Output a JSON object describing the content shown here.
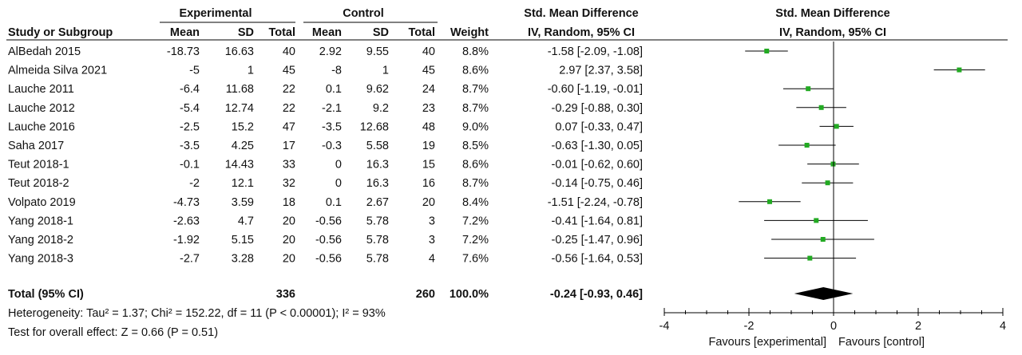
{
  "chart_data": {
    "type": "forest",
    "headers": {
      "experimental": "Experimental",
      "control": "Control",
      "smd_col_title": "Std. Mean Difference",
      "smd_col_method": "IV, Random, 95% CI",
      "plot_title": "Std. Mean Difference",
      "plot_method": "IV, Random, 95% CI",
      "study": "Study or Subgroup",
      "mean": "Mean",
      "sd": "SD",
      "total": "Total",
      "weight": "Weight"
    },
    "studies": [
      {
        "name": "AlBedah 2015",
        "exp_mean": "-18.73",
        "exp_sd": "16.63",
        "exp_total": "40",
        "ctl_mean": "2.92",
        "ctl_sd": "9.55",
        "ctl_total": "40",
        "weight": "8.8%",
        "ci_text": "-1.58 [-2.09, -1.08]",
        "est": -1.58,
        "lo": -2.09,
        "hi": -1.08
      },
      {
        "name": "Almeida Silva 2021",
        "exp_mean": "-5",
        "exp_sd": "1",
        "exp_total": "45",
        "ctl_mean": "-8",
        "ctl_sd": "1",
        "ctl_total": "45",
        "weight": "8.6%",
        "ci_text": "2.97 [2.37, 3.58]",
        "est": 2.97,
        "lo": 2.37,
        "hi": 3.58
      },
      {
        "name": "Lauche 2011",
        "exp_mean": "-6.4",
        "exp_sd": "11.68",
        "exp_total": "22",
        "ctl_mean": "0.1",
        "ctl_sd": "9.62",
        "ctl_total": "24",
        "weight": "8.7%",
        "ci_text": "-0.60 [-1.19, -0.01]",
        "est": -0.6,
        "lo": -1.19,
        "hi": -0.01
      },
      {
        "name": "Lauche 2012",
        "exp_mean": "-5.4",
        "exp_sd": "12.74",
        "exp_total": "22",
        "ctl_mean": "-2.1",
        "ctl_sd": "9.2",
        "ctl_total": "23",
        "weight": "8.7%",
        "ci_text": "-0.29 [-0.88, 0.30]",
        "est": -0.29,
        "lo": -0.88,
        "hi": 0.3
      },
      {
        "name": "Lauche 2016",
        "exp_mean": "-2.5",
        "exp_sd": "15.2",
        "exp_total": "47",
        "ctl_mean": "-3.5",
        "ctl_sd": "12.68",
        "ctl_total": "48",
        "weight": "9.0%",
        "ci_text": "0.07 [-0.33, 0.47]",
        "est": 0.07,
        "lo": -0.33,
        "hi": 0.47
      },
      {
        "name": "Saha 2017",
        "exp_mean": "-3.5",
        "exp_sd": "4.25",
        "exp_total": "17",
        "ctl_mean": "-0.3",
        "ctl_sd": "5.58",
        "ctl_total": "19",
        "weight": "8.5%",
        "ci_text": "-0.63 [-1.30, 0.05]",
        "est": -0.63,
        "lo": -1.3,
        "hi": 0.05
      },
      {
        "name": "Teut 2018-1",
        "exp_mean": "-0.1",
        "exp_sd": "14.43",
        "exp_total": "33",
        "ctl_mean": "0",
        "ctl_sd": "16.3",
        "ctl_total": "15",
        "weight": "8.6%",
        "ci_text": "-0.01 [-0.62, 0.60]",
        "est": -0.01,
        "lo": -0.62,
        "hi": 0.6
      },
      {
        "name": "Teut 2018-2",
        "exp_mean": "-2",
        "exp_sd": "12.1",
        "exp_total": "32",
        "ctl_mean": "0",
        "ctl_sd": "16.3",
        "ctl_total": "16",
        "weight": "8.7%",
        "ci_text": "-0.14 [-0.75, 0.46]",
        "est": -0.14,
        "lo": -0.75,
        "hi": 0.46
      },
      {
        "name": "Volpato 2019",
        "exp_mean": "-4.73",
        "exp_sd": "3.59",
        "exp_total": "18",
        "ctl_mean": "0.1",
        "ctl_sd": "2.67",
        "ctl_total": "20",
        "weight": "8.4%",
        "ci_text": "-1.51 [-2.24, -0.78]",
        "est": -1.51,
        "lo": -2.24,
        "hi": -0.78
      },
      {
        "name": "Yang 2018-1",
        "exp_mean": "-2.63",
        "exp_sd": "4.7",
        "exp_total": "20",
        "ctl_mean": "-0.56",
        "ctl_sd": "5.78",
        "ctl_total": "3",
        "weight": "7.2%",
        "ci_text": "-0.41 [-1.64, 0.81]",
        "est": -0.41,
        "lo": -1.64,
        "hi": 0.81
      },
      {
        "name": "Yang 2018-2",
        "exp_mean": "-1.92",
        "exp_sd": "5.15",
        "exp_total": "20",
        "ctl_mean": "-0.56",
        "ctl_sd": "5.78",
        "ctl_total": "3",
        "weight": "7.2%",
        "ci_text": "-0.25 [-1.47, 0.96]",
        "est": -0.25,
        "lo": -1.47,
        "hi": 0.96
      },
      {
        "name": "Yang 2018-3",
        "exp_mean": "-2.7",
        "exp_sd": "3.28",
        "exp_total": "20",
        "ctl_mean": "-0.56",
        "ctl_sd": "5.78",
        "ctl_total": "4",
        "weight": "7.6%",
        "ci_text": "-0.56 [-1.64, 0.53]",
        "est": -0.56,
        "lo": -1.64,
        "hi": 0.53
      }
    ],
    "total": {
      "name": "Total (95% CI)",
      "exp_total": "336",
      "ctl_total": "260",
      "weight": "100.0%",
      "ci_text": "-0.24 [-0.93, 0.46]",
      "est": -0.24,
      "lo": -0.93,
      "hi": 0.46
    },
    "heterogeneity": "Heterogeneity: Tau² = 1.37; Chi² = 152.22, df = 11 (P < 0.00001); I² = 93%",
    "overall_effect": "Test for overall effect: Z = 0.66 (P = 0.51)",
    "axis": {
      "xlim": [
        -4,
        4
      ],
      "ticks": [
        -4,
        -2,
        0,
        2,
        4
      ],
      "tick_labels": [
        "-4",
        "-2",
        "0",
        "2",
        "4"
      ],
      "favours_left": "Favours [experimental]",
      "favours_right": "Favours [control]"
    },
    "colors": {
      "marker": "#22aa22",
      "line": "#000000",
      "diamond": "#000000"
    }
  }
}
